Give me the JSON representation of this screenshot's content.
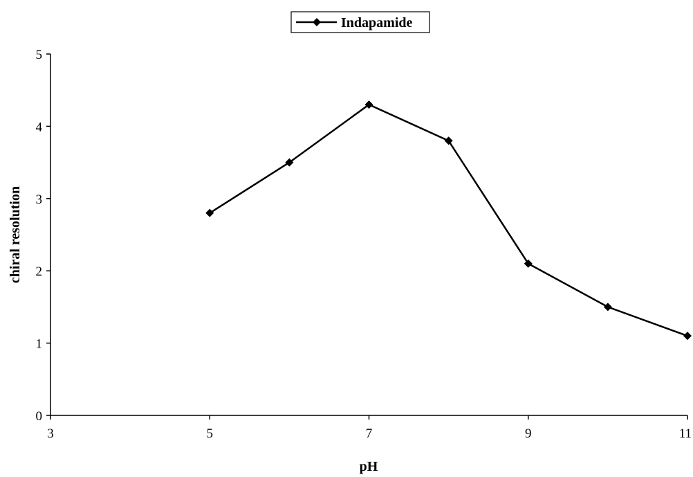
{
  "chart_data": {
    "type": "line",
    "title": "",
    "xlabel": "pH",
    "ylabel": "chiral resolution",
    "xlim": [
      3,
      11
    ],
    "ylim": [
      0,
      5
    ],
    "xticks": [
      "3",
      "5",
      "7",
      "9",
      "11"
    ],
    "yticks": [
      "0",
      "1",
      "2",
      "3",
      "4",
      "5"
    ],
    "grid": false,
    "legend_position": "top-center",
    "series": [
      {
        "name": "Indapamide",
        "color": "#000000",
        "marker": "diamond",
        "x": [
          5,
          6,
          7,
          8,
          9,
          10,
          11
        ],
        "y": [
          2.8,
          3.5,
          4.3,
          3.8,
          2.1,
          1.5,
          1.1
        ]
      }
    ]
  }
}
